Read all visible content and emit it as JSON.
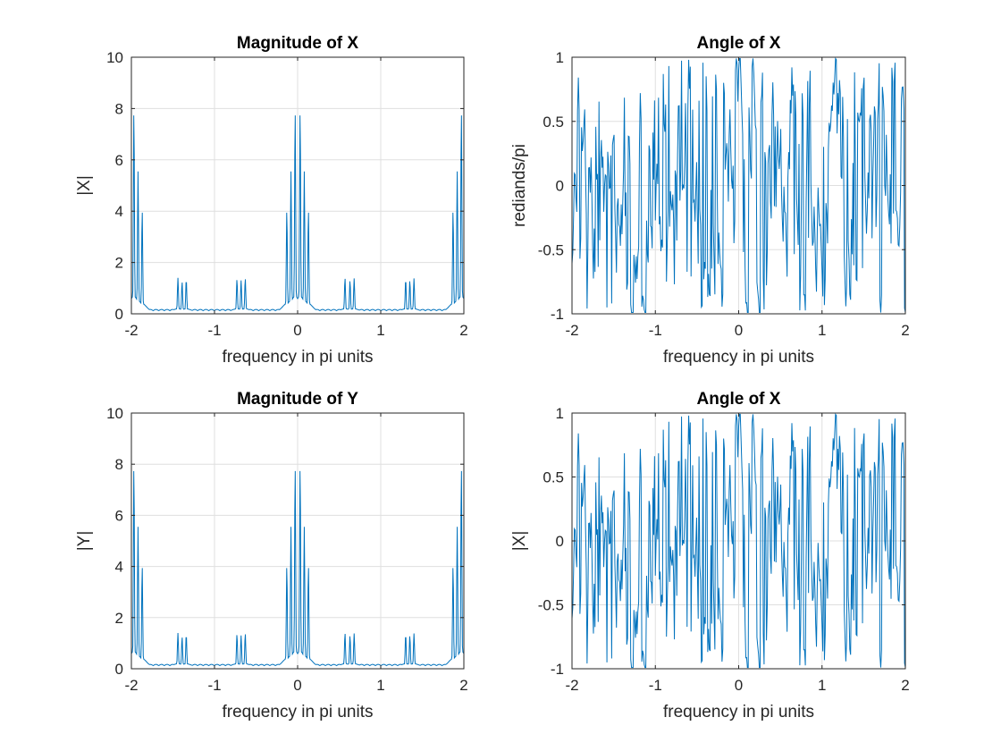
{
  "chart_data": [
    {
      "type": "line",
      "title": "Magnitude of X",
      "xlabel": "frequency in pi units",
      "ylabel": "|X|",
      "xlim": [
        -2,
        2
      ],
      "ylim": [
        0,
        10
      ],
      "xticks": [
        "-2",
        "-1",
        "0",
        "1",
        "2"
      ],
      "yticks": [
        "0",
        "2",
        "4",
        "6",
        "8",
        "10"
      ],
      "grid": true,
      "series": [
        {
          "color": "#0072BD",
          "signal": "magnitude",
          "peaks": [
            {
              "x": -1.97,
              "y": 7.85
            },
            {
              "x": -1.92,
              "y": 5.45
            },
            {
              "x": -1.87,
              "y": 3.95
            },
            {
              "x": -1.44,
              "y": 1.3
            },
            {
              "x": -1.39,
              "y": 1.15
            },
            {
              "x": -1.34,
              "y": 1.25
            },
            {
              "x": -0.73,
              "y": 1.25
            },
            {
              "x": -0.68,
              "y": 1.2
            },
            {
              "x": -0.63,
              "y": 1.28
            },
            {
              "x": -0.13,
              "y": 3.95
            },
            {
              "x": -0.08,
              "y": 5.45
            },
            {
              "x": -0.03,
              "y": 7.85
            },
            {
              "x": 0.03,
              "y": 7.85
            },
            {
              "x": 0.08,
              "y": 5.45
            },
            {
              "x": 0.13,
              "y": 3.95
            },
            {
              "x": 0.57,
              "y": 1.3
            },
            {
              "x": 0.63,
              "y": 1.2
            },
            {
              "x": 0.68,
              "y": 1.28
            },
            {
              "x": 1.3,
              "y": 1.25
            },
            {
              "x": 1.35,
              "y": 1.2
            },
            {
              "x": 1.4,
              "y": 1.28
            },
            {
              "x": 1.87,
              "y": 3.95
            },
            {
              "x": 1.92,
              "y": 5.45
            },
            {
              "x": 1.97,
              "y": 7.85
            }
          ]
        }
      ]
    },
    {
      "type": "line",
      "title": "Angle of X",
      "xlabel": "frequency in pi units",
      "ylabel": "rediands/pi",
      "xlim": [
        -2,
        2
      ],
      "ylim": [
        -1,
        1
      ],
      "xticks": [
        "-2",
        "-1",
        "0",
        "1",
        "2"
      ],
      "yticks": [
        "-1",
        "-0.5",
        "0",
        "0.5",
        "1"
      ],
      "grid": true,
      "series": [
        {
          "color": "#0072BD",
          "signal": "phase",
          "note_range": [
            -1,
            1
          ]
        }
      ]
    },
    {
      "type": "line",
      "title": "Magnitude of Y",
      "xlabel": "frequency in pi units",
      "ylabel": "|Y|",
      "xlim": [
        -2,
        2
      ],
      "ylim": [
        0,
        10
      ],
      "xticks": [
        "-2",
        "-1",
        "0",
        "1",
        "2"
      ],
      "yticks": [
        "0",
        "2",
        "4",
        "6",
        "8",
        "10"
      ],
      "grid": true,
      "series": [
        {
          "color": "#0072BD",
          "signal": "magnitude",
          "peaks": [
            {
              "x": -1.97,
              "y": 7.85
            },
            {
              "x": -1.92,
              "y": 5.45
            },
            {
              "x": -1.87,
              "y": 3.95
            },
            {
              "x": -1.44,
              "y": 1.3
            },
            {
              "x": -1.39,
              "y": 1.15
            },
            {
              "x": -1.34,
              "y": 1.25
            },
            {
              "x": -0.73,
              "y": 1.25
            },
            {
              "x": -0.68,
              "y": 1.2
            },
            {
              "x": -0.63,
              "y": 1.28
            },
            {
              "x": -0.13,
              "y": 3.95
            },
            {
              "x": -0.08,
              "y": 5.45
            },
            {
              "x": -0.03,
              "y": 7.85
            },
            {
              "x": 0.03,
              "y": 7.85
            },
            {
              "x": 0.08,
              "y": 5.45
            },
            {
              "x": 0.13,
              "y": 3.95
            },
            {
              "x": 0.57,
              "y": 1.3
            },
            {
              "x": 0.63,
              "y": 1.2
            },
            {
              "x": 0.68,
              "y": 1.28
            },
            {
              "x": 1.3,
              "y": 1.25
            },
            {
              "x": 1.35,
              "y": 1.2
            },
            {
              "x": 1.4,
              "y": 1.28
            },
            {
              "x": 1.87,
              "y": 3.95
            },
            {
              "x": 1.92,
              "y": 5.45
            },
            {
              "x": 1.97,
              "y": 7.85
            }
          ]
        }
      ]
    },
    {
      "type": "line",
      "title": "Angle of X",
      "xlabel": "frequency in pi units",
      "ylabel": "|X|",
      "xlim": [
        -2,
        2
      ],
      "ylim": [
        -1,
        1
      ],
      "xticks": [
        "-2",
        "-1",
        "0",
        "1",
        "2"
      ],
      "yticks": [
        "-1",
        "-0.5",
        "0",
        "0.5",
        "1"
      ],
      "grid": true,
      "series": [
        {
          "color": "#0072BD",
          "signal": "phase"
        }
      ]
    }
  ]
}
